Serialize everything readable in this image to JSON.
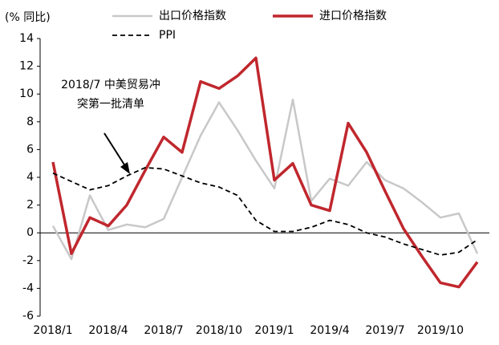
{
  "chart_data": {
    "type": "line",
    "y_unit": "(% 同比)",
    "annotation": [
      "2018/7 中美贸易冲",
      "突第一批清单"
    ],
    "categories": [
      "2018/1",
      null,
      null,
      "2018/4",
      null,
      null,
      "2018/7",
      null,
      null,
      "2018/10",
      null,
      null,
      "2019/1",
      null,
      null,
      "2019/4",
      null,
      null,
      "2019/7",
      null,
      null,
      "2019/10",
      null,
      null
    ],
    "series": [
      {
        "name": "出口价格指数",
        "color": "#c8c8c8",
        "dashed": false,
        "values": [
          0.5,
          -1.9,
          2.7,
          0.2,
          0.6,
          0.4,
          1.0,
          4.0,
          7.0,
          9.4,
          7.4,
          5.2,
          3.2,
          9.6,
          2.3,
          3.9,
          3.4,
          5.1,
          3.8,
          3.2,
          2.2,
          1.1,
          1.4,
          -1.5
        ]
      },
      {
        "name": "进口价格指数",
        "color": "#c0272d",
        "dashed": false,
        "values": [
          5.1,
          -1.5,
          1.1,
          0.5,
          2.0,
          4.5,
          6.9,
          5.8,
          10.9,
          10.4,
          11.3,
          12.6,
          3.8,
          5.0,
          2.0,
          1.6,
          7.9,
          5.8,
          3.0,
          0.3,
          -1.7,
          -3.6,
          -3.9,
          -2.1
        ]
      },
      {
        "name": "PPI",
        "color": "#000000",
        "dashed": true,
        "values": [
          4.3,
          3.7,
          3.1,
          3.4,
          4.1,
          4.7,
          4.6,
          4.1,
          3.6,
          3.3,
          2.7,
          0.9,
          0.1,
          0.1,
          0.4,
          0.9,
          0.6,
          0.0,
          -0.3,
          -0.8,
          -1.2,
          -1.6,
          -1.4,
          -0.5
        ]
      }
    ],
    "ylim": [
      -6,
      14
    ],
    "yticks": [
      -6,
      -4,
      -2,
      0,
      2,
      4,
      6,
      8,
      10,
      12,
      14
    ],
    "grid": false
  }
}
